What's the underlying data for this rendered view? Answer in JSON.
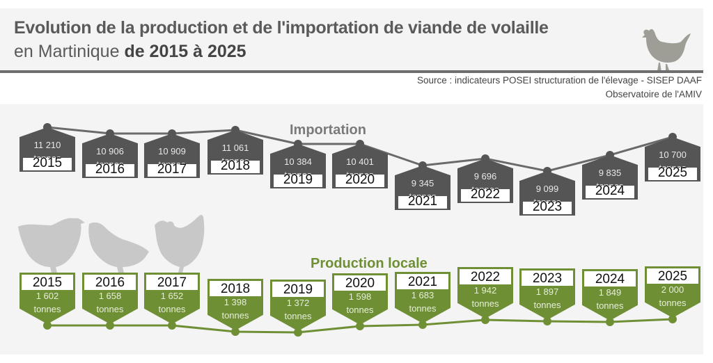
{
  "header": {
    "title_line1": "Evolution de la production et de l'importation de viande de volaille",
    "title_line2_prefix": "en Martinique ",
    "title_line2_bold": "de 2015 à 2025",
    "source_line1": "Source : indicateurs POSEI structuration de l'élevage - SISEP DAAF",
    "source_line2": "Observatoire de l'AMIV"
  },
  "colors": {
    "import": "#555555",
    "production": "#6f8f35",
    "background": "#f4f4f4"
  },
  "labels": {
    "import": "Importation",
    "production": "Production locale",
    "unit": "tonnes"
  },
  "import": [
    {
      "year": "2015",
      "value": "11 210",
      "unit": "tonnes"
    },
    {
      "year": "2016",
      "value": "10 906",
      "unit": "tonnes"
    },
    {
      "year": "2017",
      "value": "10 909",
      "unit": "tonnes"
    },
    {
      "year": "2018",
      "value": "11 061",
      "unit": "tonnes"
    },
    {
      "year": "2019",
      "value": "10 384",
      "unit": "tonnes"
    },
    {
      "year": "2020",
      "value": "10 401",
      "unit": "tonnes"
    },
    {
      "year": "2021",
      "value": "9 345",
      "unit": "tonnes"
    },
    {
      "year": "2022",
      "value": "9 696",
      "unit": "tonnes"
    },
    {
      "year": "2023",
      "value": "9 099",
      "unit": "tonnes"
    },
    {
      "year": "2024",
      "value": "9 835",
      "unit": "tonnes"
    },
    {
      "year": "2025",
      "value": "10 700",
      "unit": "tonnes"
    }
  ],
  "production": [
    {
      "year": "2015",
      "value": "1 602",
      "unit": "tonnes"
    },
    {
      "year": "2016",
      "value": "1 658",
      "unit": "tonnes"
    },
    {
      "year": "2017",
      "value": "1 652",
      "unit": "tonnes"
    },
    {
      "year": "2018",
      "value": "1 398",
      "unit": "tonnes"
    },
    {
      "year": "2019",
      "value": "1 372",
      "unit": "tonnes"
    },
    {
      "year": "2020",
      "value": "1 598",
      "unit": "tonnes"
    },
    {
      "year": "2021",
      "value": "1 683",
      "unit": "tonnes"
    },
    {
      "year": "2022",
      "value": "1 942",
      "unit": "tonnes"
    },
    {
      "year": "2023",
      "value": "1 897",
      "unit": "tonnes"
    },
    {
      "year": "2024",
      "value": "1 849",
      "unit": "tonnes"
    },
    {
      "year": "2025",
      "value": "2 000",
      "unit": "tonnes"
    }
  ],
  "chart_data": {
    "type": "line",
    "title": "Evolution de la production et de l'importation de viande de volaille en Martinique de 2015 à 2025",
    "xlabel": "",
    "ylabel": "tonnes",
    "categories": [
      "2015",
      "2016",
      "2017",
      "2018",
      "2019",
      "2020",
      "2021",
      "2022",
      "2023",
      "2024",
      "2025"
    ],
    "series": [
      {
        "name": "Importation",
        "values": [
          11210,
          10906,
          10909,
          11061,
          10384,
          10401,
          9345,
          9696,
          9099,
          9835,
          10700
        ]
      },
      {
        "name": "Production locale",
        "values": [
          1602,
          1658,
          1652,
          1398,
          1372,
          1598,
          1683,
          1942,
          1897,
          1849,
          2000
        ]
      }
    ],
    "source": "Source : indicateurs POSEI structuration de l'élevage - SISEP DAAF ; Observatoire de l'AMIV",
    "grid": false,
    "legend": "inline labels"
  }
}
